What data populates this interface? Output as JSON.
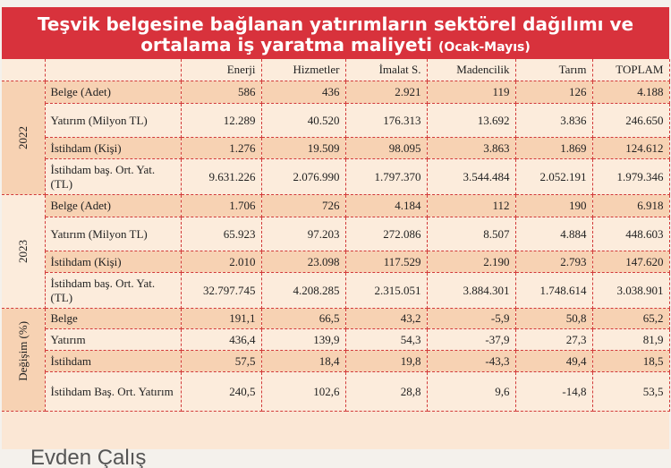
{
  "title": {
    "line1": "Teşvik belgesine bağlanan yatırımların sektörel dağılımı ve",
    "line2": "ortalama iş yaratma maliyeti",
    "subtitle": "(Ocak-Mayıs)"
  },
  "columns": [
    "Enerji",
    "Hizmetler",
    "İmalat S.",
    "Madencilik",
    "Tarım",
    "TOPLAM"
  ],
  "groups": [
    {
      "label": "2022",
      "rows": [
        {
          "label": "Belge (Adet)",
          "values": [
            "586",
            "436",
            "2.921",
            "119",
            "126",
            "4.188"
          ]
        },
        {
          "label": "Yatırım (Milyon TL)",
          "values": [
            "12.289",
            "40.520",
            "176.313",
            "13.692",
            "3.836",
            "246.650"
          ]
        },
        {
          "label": "İstihdam (Kişi)",
          "values": [
            "1.276",
            "19.509",
            "98.095",
            "3.863",
            "1.869",
            "124.612"
          ]
        },
        {
          "label": "İstihdam baş. Ort. Yat. (TL)",
          "values": [
            "9.631.226",
            "2.076.990",
            "1.797.370",
            "3.544.484",
            "2.052.191",
            "1.979.346"
          ]
        }
      ]
    },
    {
      "label": "2023",
      "rows": [
        {
          "label": "Belge (Adet)",
          "values": [
            "1.706",
            "726",
            "4.184",
            "112",
            "190",
            "6.918"
          ]
        },
        {
          "label": "Yatırım (Milyon TL)",
          "values": [
            "65.923",
            "97.203",
            "272.086",
            "8.507",
            "4.884",
            "448.603"
          ]
        },
        {
          "label": "İstihdam (Kişi)",
          "values": [
            "2.010",
            "23.098",
            "117.529",
            "2.190",
            "2.793",
            "147.620"
          ]
        },
        {
          "label": "İstihdam baş. Ort. Yat. (TL)",
          "values": [
            "32.797.745",
            "4.208.285",
            "2.315.051",
            "3.884.301",
            "1.748.614",
            "3.038.901"
          ]
        }
      ]
    },
    {
      "label": "Değişim (%)",
      "rows": [
        {
          "label": "Belge",
          "values": [
            "191,1",
            "66,5",
            "43,2",
            "-5,9",
            "50,8",
            "65,2"
          ]
        },
        {
          "label": "Yatırım",
          "values": [
            "436,4",
            "139,9",
            "54,3",
            "-37,9",
            "27,3",
            "81,9"
          ]
        },
        {
          "label": "İstihdam",
          "values": [
            "57,5",
            "18,4",
            "19,8",
            "-43,3",
            "49,4",
            "18,5"
          ]
        },
        {
          "label": "İstihdam Baş. Ort. Yatırım",
          "values": [
            "240,5",
            "102,6",
            "28,8",
            "9,6",
            "-14,8",
            "53,5"
          ]
        }
      ]
    }
  ],
  "author": "Evden Çalış"
}
